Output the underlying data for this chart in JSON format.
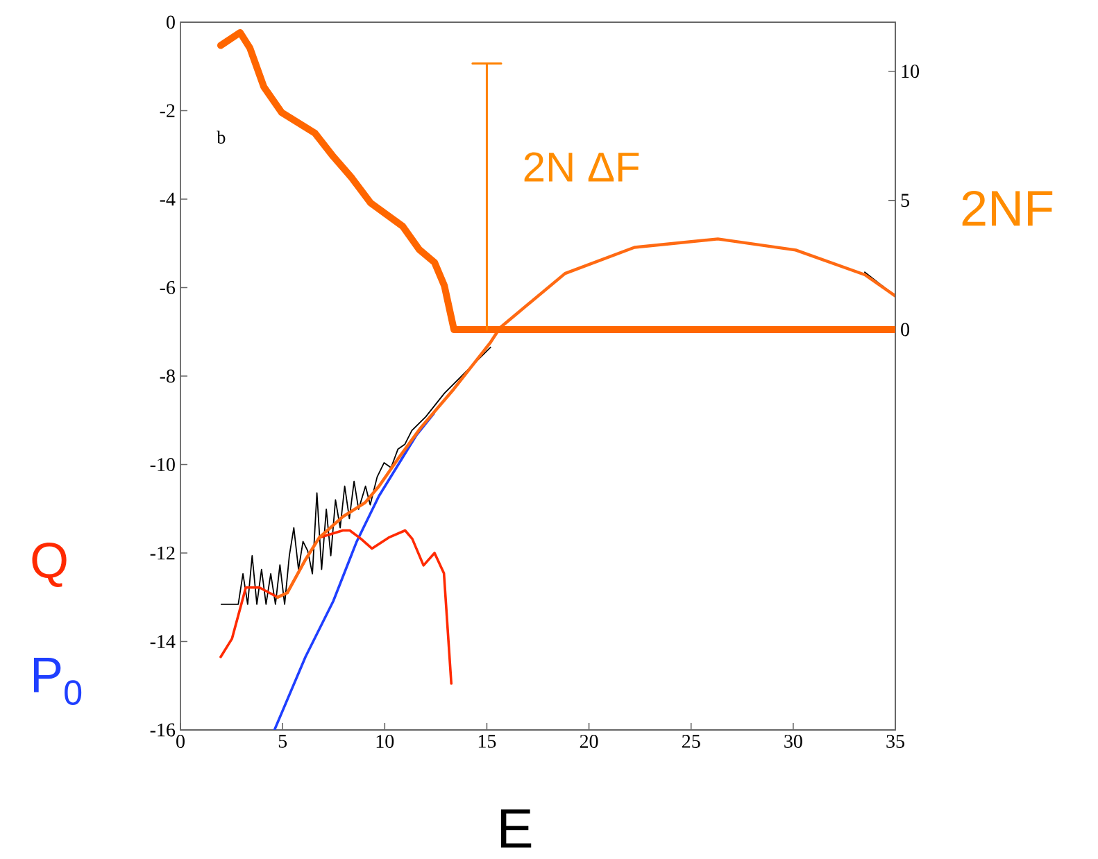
{
  "chart_data": {
    "type": "line",
    "xlabel": "E",
    "y2label": "2NF",
    "xlim": [
      0,
      35
    ],
    "xticks": [
      0,
      5,
      10,
      15,
      20,
      25,
      30,
      35
    ],
    "ylim": [
      -16,
      0
    ],
    "yticks": [
      -16,
      -14,
      -12,
      -10,
      -8,
      -6,
      -4,
      -2,
      0
    ],
    "y2lim": [
      -15.5,
      11.9
    ],
    "y2ticks": [
      0,
      5,
      10
    ],
    "annotations": [
      "b",
      "2N ΔF"
    ],
    "grid": false,
    "marker": "none",
    "line_style": "solid",
    "series": [
      {
        "color": "#000000",
        "x": [
          2.0,
          2.83,
          3.06,
          3.29,
          3.51,
          3.74,
          3.97,
          4.19,
          4.42,
          4.65,
          4.87,
          5.1,
          5.33,
          5.55,
          5.78,
          6.0,
          6.23,
          6.46,
          6.68,
          6.91,
          7.14,
          7.36,
          7.59,
          7.82,
          8.04,
          8.27,
          8.5,
          8.72,
          9.06,
          9.29,
          9.63,
          9.97,
          10.31,
          10.65,
          10.99,
          11.33,
          12.01,
          12.92,
          14.05,
          15.18,
          18.8,
          22.2,
          26.3,
          30.1,
          33.5,
          35
        ],
        "values": [
          -13.16,
          -13.16,
          -12.47,
          -13.16,
          -12.06,
          -13.16,
          -12.37,
          -13.16,
          -12.47,
          -13.16,
          -12.27,
          -13.16,
          -12.06,
          -11.43,
          -12.37,
          -11.74,
          -11.95,
          -12.47,
          -10.64,
          -12.37,
          -11.01,
          -12.06,
          -10.8,
          -11.43,
          -10.49,
          -11.22,
          -10.38,
          -11.01,
          -10.49,
          -10.91,
          -10.28,
          -9.96,
          -10.07,
          -9.65,
          -9.54,
          -9.23,
          -8.92,
          -8.39,
          -7.87,
          -7.35,
          null,
          null,
          null,
          null,
          -5.65,
          -6.19
        ]
      },
      {
        "name": "P$_{0}$",
        "color": "#1f3fff",
        "x": [
          4.62,
          6.12,
          7.48,
          8.63,
          9.72,
          11.56,
          12.4
        ],
        "values": [
          -15.98,
          -14.35,
          -13.09,
          -11.74,
          -10.71,
          -9.33,
          -8.85
        ]
      },
      {
        "name": "Q",
        "color": "#ff2a00",
        "x": [
          1.97,
          2.52,
          3.2,
          3.87,
          4.76,
          5.23,
          6.12,
          6.8,
          7.95,
          8.29,
          8.84,
          9.38,
          10.2,
          11.0,
          11.35,
          11.9,
          12.44,
          12.9,
          13.26
        ],
        "values": [
          -14.35,
          -13.94,
          -12.78,
          -12.78,
          -13.0,
          -12.9,
          -12.15,
          -11.65,
          -11.49,
          -11.49,
          -11.68,
          -11.9,
          -11.65,
          -11.49,
          -11.68,
          -12.28,
          -12.0,
          -12.46,
          -14.95
        ]
      },
      {
        "color": "#ff6a13",
        "x": [
          4.76,
          5.23,
          6.12,
          6.8,
          7.95,
          9.04,
          9.72,
          10.67,
          11.76,
          13.39,
          15.16,
          15.64,
          18.83,
          22.23,
          26.31,
          30.12,
          33.51,
          35
        ],
        "values": [
          -13.0,
          -12.9,
          -12.15,
          -11.65,
          -11.18,
          -10.86,
          -10.49,
          -9.86,
          -9.17,
          -8.29,
          -7.25,
          -6.91,
          -5.68,
          -5.09,
          -4.9,
          -5.15,
          -5.71,
          -6.19
        ]
      },
      {
        "color": "#ff6600",
        "axis": "y2",
        "x": [
          1.97,
          2.92,
          3.4,
          4.08,
          4.96,
          6.59,
          7.48,
          8.36,
          9.31,
          10.88,
          11.69,
          12.44,
          12.92,
          13.39,
          35
        ],
        "values": [
          11.0,
          11.5,
          10.9,
          9.4,
          8.4,
          7.6,
          6.7,
          5.9,
          4.9,
          4.0,
          3.1,
          2.6,
          1.7,
          0,
          0
        ]
      },
      {
        "color": "#ff8000",
        "axis": "y2",
        "x": [
          14.3,
          15.7,
          15,
          15
        ],
        "values": [
          10.3,
          10.3,
          10.3,
          0
        ]
      }
    ]
  }
}
